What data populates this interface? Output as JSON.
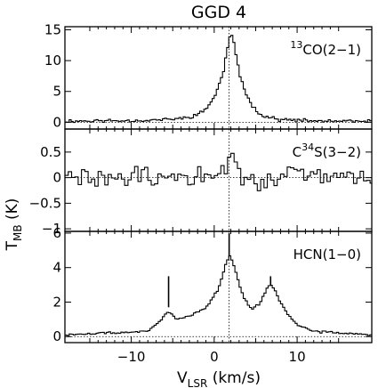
{
  "chart_data": {
    "type": "line",
    "title": "GGD 4",
    "xlabel_main": "V",
    "xlabel_sub": "LSR",
    "xlabel_unit": " (km/s)",
    "ylabel_main": "T",
    "ylabel_sub": "MB",
    "ylabel_unit": " (K)",
    "xlim": [
      -18,
      19
    ],
    "x_ticks": [
      -10,
      0,
      10
    ],
    "x_tick_labels": [
      "−10",
      "0",
      "10"
    ],
    "vline_x": 1.8,
    "panels": [
      {
        "label_pre": "",
        "label_sup": "13",
        "label_post": "CO(2−1)",
        "ylim": [
          -1.1,
          15.5
        ],
        "y_ticks": [
          0,
          5,
          10,
          15
        ],
        "y_tick_labels": [
          "0",
          "5",
          "10",
          "15"
        ],
        "step": 0.25,
        "profile": [
          [
            -18,
            0.2
          ],
          [
            -8,
            0.3
          ],
          [
            -4,
            0.6
          ],
          [
            -2,
            1.2
          ],
          [
            -1,
            2.2
          ],
          [
            0,
            4
          ],
          [
            1,
            7.5
          ],
          [
            1.6,
            12
          ],
          [
            2,
            14.8
          ],
          [
            2.5,
            12
          ],
          [
            3,
            8
          ],
          [
            4,
            4
          ],
          [
            5,
            2
          ],
          [
            6,
            1
          ],
          [
            8,
            0.4
          ],
          [
            12,
            0.2
          ],
          [
            19,
            0.1
          ]
        ],
        "noise_amp": 0.35,
        "seed": 11
      },
      {
        "label_pre": "C",
        "label_sup": "34",
        "label_post": "S(3−2)",
        "ylim": [
          -1.05,
          0.95
        ],
        "y_ticks": [
          -1,
          -0.5,
          0,
          0.5
        ],
        "y_tick_labels": [
          "−1",
          "−0.5",
          "0",
          "0.5"
        ],
        "step": 0.4,
        "profile": [
          [
            -18,
            0
          ],
          [
            0.5,
            0
          ],
          [
            1.5,
            0.25
          ],
          [
            2.0,
            0.55
          ],
          [
            2.6,
            0.2
          ],
          [
            3.5,
            0
          ],
          [
            19,
            0
          ]
        ],
        "noise_amp": 0.28,
        "seed": 29
      },
      {
        "label_pre": "",
        "label_sup": "",
        "label_post": "HCN(1−0)",
        "ylim": [
          -0.35,
          6.1
        ],
        "y_ticks": [
          0,
          2,
          4,
          6
        ],
        "y_tick_labels": [
          "0",
          "2",
          "4",
          "6"
        ],
        "step": 0.25,
        "profile": [
          [
            -18,
            0.1
          ],
          [
            -8,
            0.3
          ],
          [
            -6.5,
            0.9
          ],
          [
            -5.5,
            1.5
          ],
          [
            -4.5,
            1.0
          ],
          [
            -3,
            1.2
          ],
          [
            -1,
            1.7
          ],
          [
            0.5,
            2.7
          ],
          [
            1.5,
            4.4
          ],
          [
            2.0,
            4.7
          ],
          [
            2.7,
            3.6
          ],
          [
            3.5,
            2.3
          ],
          [
            4.5,
            1.6
          ],
          [
            5.5,
            1.9
          ],
          [
            6.5,
            2.9
          ],
          [
            7.0,
            3.0
          ],
          [
            8.0,
            2.0
          ],
          [
            9,
            1.2
          ],
          [
            10,
            0.7
          ],
          [
            12,
            0.3
          ],
          [
            19,
            0.1
          ]
        ],
        "noise_amp": 0.08,
        "seed": 47,
        "markers": [
          {
            "x": -5.5,
            "y_top": 3.5,
            "y_bottom": 1.7
          },
          {
            "x": 1.8,
            "y_top": 6.0,
            "y_bottom": 4.7
          },
          {
            "x": 6.8,
            "y_top": 3.5,
            "y_bottom": 3.0
          }
        ]
      }
    ]
  }
}
